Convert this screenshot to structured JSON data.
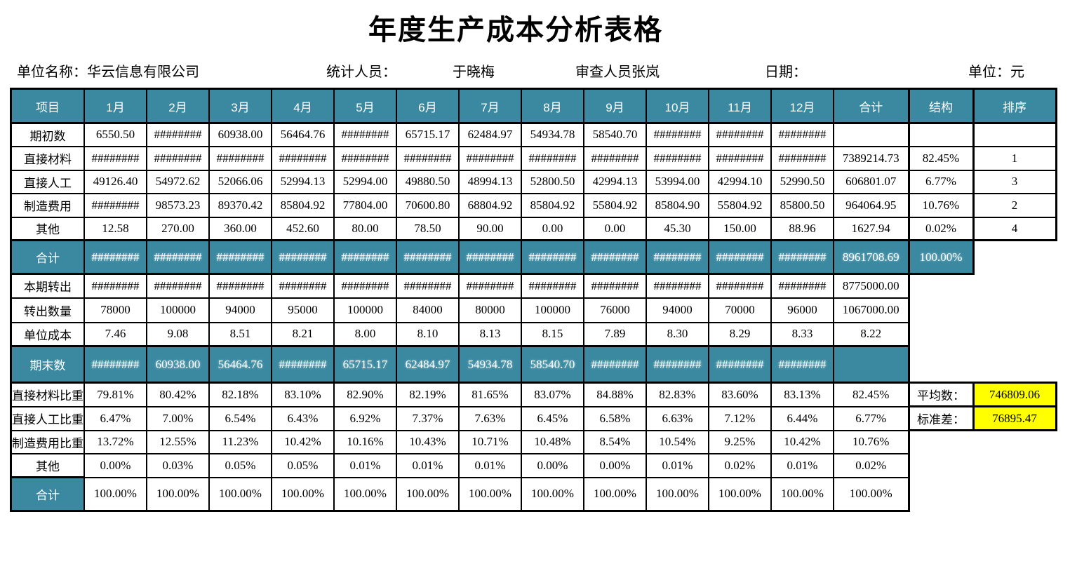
{
  "title": "年度生产成本分析表格",
  "meta": {
    "unit_name_label": "单位名称：",
    "unit_name": "华云信息有限公司",
    "statistician_label": "统计人员：",
    "statistician": "于晓梅",
    "reviewer": "审查人员张岚",
    "date_label": "日期：",
    "unit_label": "单位：",
    "unit_value": "元"
  },
  "colors": {
    "teal": "#3A89A1",
    "yellow": "#FFFF00"
  },
  "stats": {
    "average_label": "平均数：",
    "average_value": "746809.06",
    "stddev_label": "标准差：",
    "stddev_value": "76895.47"
  },
  "table": {
    "headers": [
      "项目",
      "1月",
      "2月",
      "3月",
      "4月",
      "5月",
      "6月",
      "7月",
      "8月",
      "9月",
      "10月",
      "11月",
      "12月",
      "合计",
      "结构",
      "排序"
    ],
    "rows": [
      {
        "label": "期初数",
        "style": "normal",
        "cells": [
          "6550.50",
          "########",
          "60938.00",
          "56464.76",
          "########",
          "65715.17",
          "62484.97",
          "54934.78",
          "58540.70",
          "########",
          "########",
          "########"
        ],
        "total": "",
        "tail": {
          "kind": "pair",
          "structure": "",
          "rank": ""
        }
      },
      {
        "label": "直接材料",
        "style": "normal",
        "cells": [
          "########",
          "########",
          "########",
          "########",
          "########",
          "########",
          "########",
          "########",
          "########",
          "########",
          "########",
          "########"
        ],
        "total": "7389214.73",
        "tail": {
          "kind": "pair",
          "structure": "82.45%",
          "rank": "1"
        }
      },
      {
        "label": "直接人工",
        "style": "normal",
        "cells": [
          "49126.40",
          "54972.62",
          "52066.06",
          "52994.13",
          "52994.00",
          "49880.50",
          "48994.13",
          "52800.50",
          "42994.13",
          "53994.00",
          "42994.10",
          "52990.50"
        ],
        "total": "606801.07",
        "tail": {
          "kind": "pair",
          "structure": "6.77%",
          "rank": "3"
        }
      },
      {
        "label": "制造费用",
        "style": "normal",
        "cells": [
          "########",
          "98573.23",
          "89370.42",
          "85804.92",
          "77804.00",
          "70600.80",
          "68804.92",
          "85804.92",
          "55804.92",
          "85804.90",
          "55804.92",
          "85800.50"
        ],
        "total": "964064.95",
        "tail": {
          "kind": "pair",
          "structure": "10.76%",
          "rank": "2"
        }
      },
      {
        "label": "其他",
        "style": "normal",
        "cells": [
          "12.58",
          "270.00",
          "360.00",
          "452.60",
          "80.00",
          "78.50",
          "90.00",
          "0.00",
          "0.00",
          "45.30",
          "150.00",
          "88.96"
        ],
        "total": "1627.94",
        "tail": {
          "kind": "pair",
          "structure": "0.02%",
          "rank": "4"
        }
      },
      {
        "label": "合计",
        "style": "teal",
        "cells": [
          "########",
          "########",
          "########",
          "########",
          "########",
          "########",
          "########",
          "########",
          "########",
          "########",
          "########",
          "########"
        ],
        "total": "8961708.69",
        "tail": {
          "kind": "structure-teal",
          "structure": "100.00%"
        }
      },
      {
        "label": "本期转出",
        "style": "normal",
        "cells": [
          "########",
          "########",
          "########",
          "########",
          "########",
          "########",
          "########",
          "########",
          "########",
          "########",
          "########",
          "########"
        ],
        "total": "8775000.00",
        "tail": {
          "kind": "none"
        }
      },
      {
        "label": "转出数量",
        "style": "normal",
        "cells": [
          "78000",
          "100000",
          "94000",
          "95000",
          "100000",
          "84000",
          "80000",
          "100000",
          "76000",
          "94000",
          "70000",
          "96000"
        ],
        "total": "1067000.00",
        "tail": {
          "kind": "none"
        }
      },
      {
        "label": "单位成本",
        "style": "normal",
        "cells": [
          "7.46",
          "9.08",
          "8.51",
          "8.21",
          "8.00",
          "8.10",
          "8.13",
          "8.15",
          "7.89",
          "8.30",
          "8.29",
          "8.33"
        ],
        "total": "8.22",
        "tail": {
          "kind": "none"
        }
      },
      {
        "label": "期末数",
        "style": "teal",
        "cells": [
          "########",
          "60938.00",
          "56464.76",
          "########",
          "65715.17",
          "62484.97",
          "54934.78",
          "58540.70",
          "########",
          "########",
          "########",
          "########"
        ],
        "total": "",
        "tail": {
          "kind": "none"
        }
      },
      {
        "label": "直接材料比重",
        "style": "normal",
        "clip": true,
        "cells": [
          "79.81%",
          "80.42%",
          "82.18%",
          "83.10%",
          "82.90%",
          "82.19%",
          "81.65%",
          "83.07%",
          "84.88%",
          "82.83%",
          "83.60%",
          "83.13%"
        ],
        "total": "82.45%",
        "tail": {
          "kind": "stat",
          "stat": "average"
        }
      },
      {
        "label": "直接人工比重",
        "style": "normal",
        "clip": true,
        "cells": [
          "6.47%",
          "7.00%",
          "6.54%",
          "6.43%",
          "6.92%",
          "7.37%",
          "7.63%",
          "6.45%",
          "6.58%",
          "6.63%",
          "7.12%",
          "6.44%"
        ],
        "total": "6.77%",
        "tail": {
          "kind": "stat",
          "stat": "stddev"
        }
      },
      {
        "label": "制造费用比重",
        "style": "normal",
        "clip": true,
        "cells": [
          "13.72%",
          "12.55%",
          "11.23%",
          "10.42%",
          "10.16%",
          "10.43%",
          "10.71%",
          "10.48%",
          "8.54%",
          "10.54%",
          "9.25%",
          "10.42%"
        ],
        "total": "10.76%",
        "tail": {
          "kind": "none"
        }
      },
      {
        "label": "其他",
        "style": "normal",
        "cells": [
          "0.00%",
          "0.03%",
          "0.05%",
          "0.05%",
          "0.01%",
          "0.01%",
          "0.01%",
          "0.00%",
          "0.00%",
          "0.01%",
          "0.02%",
          "0.01%"
        ],
        "total": "0.02%",
        "tail": {
          "kind": "none"
        }
      },
      {
        "label": "合计",
        "style": "label-teal",
        "cells": [
          "100.00%",
          "100.00%",
          "100.00%",
          "100.00%",
          "100.00%",
          "100.00%",
          "100.00%",
          "100.00%",
          "100.00%",
          "100.00%",
          "100.00%",
          "100.00%"
        ],
        "total": "100.00%",
        "tail": {
          "kind": "none"
        }
      }
    ]
  }
}
